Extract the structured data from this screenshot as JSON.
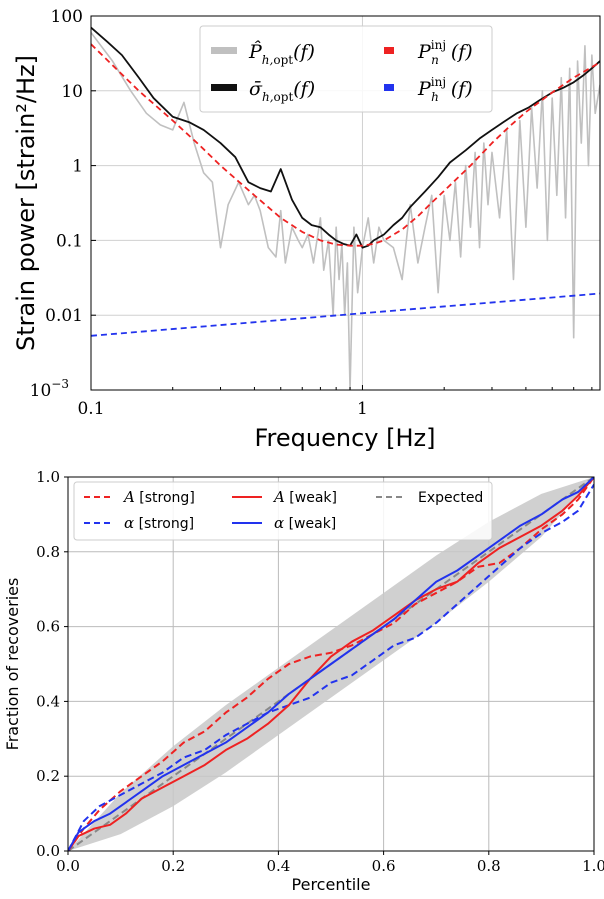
{
  "chart_data": [
    {
      "type": "line",
      "xscale": "log",
      "yscale": "log",
      "xlabel": "Frequency [Hz]",
      "ylabel": "Strain power [strain²/Hz]",
      "xlim": [
        0.1,
        7.5
      ],
      "ylim": [
        0.001,
        100
      ],
      "x_ticks": [
        {
          "value": 0.1,
          "label": "0.1"
        },
        {
          "value": 1,
          "label": "1"
        }
      ],
      "y_ticks": [
        {
          "value": 0.001,
          "label": "10",
          "exp": "−3"
        },
        {
          "value": 0.01,
          "label": "0.01"
        },
        {
          "value": 0.1,
          "label": "0.1"
        },
        {
          "value": 1,
          "label": "1"
        },
        {
          "value": 10,
          "label": "10"
        },
        {
          "value": 100,
          "label": "100"
        }
      ],
      "grid": true,
      "legend_position": "top-center",
      "series": [
        {
          "name": "P̂_{h,opt}(f)",
          "color": "#c0c0c0",
          "style": "solid",
          "x": [
            0.1,
            0.12,
            0.14,
            0.16,
            0.18,
            0.2,
            0.22,
            0.24,
            0.26,
            0.28,
            0.3,
            0.32,
            0.35,
            0.38,
            0.4,
            0.42,
            0.45,
            0.48,
            0.5,
            0.52,
            0.55,
            0.58,
            0.6,
            0.63,
            0.66,
            0.7,
            0.72,
            0.75,
            0.78,
            0.8,
            0.82,
            0.84,
            0.86,
            0.88,
            0.9,
            0.93,
            0.96,
            1.0,
            1.05,
            1.1,
            1.15,
            1.2,
            1.3,
            1.4,
            1.5,
            1.6,
            1.7,
            1.8,
            1.9,
            2.0,
            2.1,
            2.2,
            2.3,
            2.4,
            2.5,
            2.6,
            2.7,
            2.8,
            2.9,
            3.0,
            3.2,
            3.4,
            3.6,
            3.8,
            4.0,
            4.2,
            4.4,
            4.6,
            4.8,
            5.0,
            5.2,
            5.4,
            5.6,
            5.8,
            6.0,
            6.2,
            6.4,
            6.6,
            6.8,
            7.0,
            7.2,
            7.5
          ],
          "values": [
            60,
            25,
            10,
            5,
            3.5,
            3,
            7,
            2,
            0.8,
            0.6,
            0.08,
            0.3,
            0.6,
            0.3,
            0.4,
            0.25,
            0.08,
            0.06,
            0.25,
            0.05,
            0.15,
            0.1,
            0.08,
            0.12,
            0.05,
            0.2,
            0.04,
            0.1,
            0.01,
            0.15,
            0.03,
            0.09,
            0.01,
            0.05,
            0.001,
            0.15,
            0.02,
            0.08,
            0.2,
            0.05,
            0.15,
            0.1,
            0.08,
            0.03,
            0.3,
            0.05,
            0.15,
            0.4,
            0.02,
            0.4,
            0.1,
            0.6,
            0.06,
            1.0,
            0.15,
            1.5,
            0.08,
            2.0,
            0.3,
            1.5,
            0.2,
            3.0,
            0.03,
            4.0,
            0.15,
            6.0,
            0.5,
            10,
            0.1,
            8,
            0.4,
            15,
            0.2,
            20,
            0.005,
            25,
            2,
            40,
            1,
            30,
            5,
            12
          ]
        },
        {
          "name": "σ̄_{h,opt}(f)",
          "color": "#111111",
          "style": "solid",
          "x": [
            0.1,
            0.115,
            0.13,
            0.15,
            0.17,
            0.2,
            0.23,
            0.26,
            0.3,
            0.34,
            0.38,
            0.42,
            0.46,
            0.5,
            0.55,
            0.6,
            0.65,
            0.7,
            0.75,
            0.8,
            0.85,
            0.9,
            0.95,
            1.0,
            1.05,
            1.1,
            1.2,
            1.3,
            1.4,
            1.5,
            1.7,
            1.9,
            2.1,
            2.4,
            2.7,
            3.0,
            3.3,
            3.7,
            4.1,
            4.5,
            5.0,
            5.5,
            6.0,
            6.5,
            7.0,
            7.5
          ],
          "values": [
            70,
            45,
            30,
            15,
            8,
            4.5,
            3.8,
            3.0,
            2.0,
            1.3,
            0.6,
            0.5,
            0.45,
            0.9,
            0.35,
            0.2,
            0.16,
            0.15,
            0.12,
            0.1,
            0.09,
            0.085,
            0.12,
            0.08,
            0.085,
            0.1,
            0.12,
            0.16,
            0.2,
            0.28,
            0.45,
            0.7,
            1.1,
            1.6,
            2.3,
            3.0,
            3.8,
            5.0,
            6.0,
            7.5,
            9.5,
            11,
            13,
            16,
            20,
            25
          ]
        },
        {
          "name": "P_n^inj(f)",
          "color": "#ee2222",
          "style": "dashed",
          "x": [
            0.1,
            0.12,
            0.15,
            0.2,
            0.25,
            0.3,
            0.4,
            0.5,
            0.6,
            0.7,
            0.8,
            0.9,
            1.0,
            1.1,
            1.2,
            1.4,
            1.6,
            1.8,
            2.0,
            2.5,
            3.0,
            3.5,
            4.0,
            5.0,
            6.0,
            7.5
          ],
          "values": [
            42,
            22,
            10,
            4.0,
            1.9,
            1.0,
            0.4,
            0.2,
            0.13,
            0.1,
            0.088,
            0.085,
            0.085,
            0.09,
            0.1,
            0.14,
            0.21,
            0.32,
            0.46,
            1.0,
            2.0,
            3.4,
            5.2,
            9.5,
            15,
            24
          ]
        },
        {
          "name": "P_h^inj(f)",
          "color": "#2233ee",
          "style": "dashed",
          "x": [
            0.1,
            7.5
          ],
          "values": [
            0.0053,
            0.0195
          ]
        }
      ]
    },
    {
      "type": "line",
      "xlabel": "Percentile",
      "ylabel": "Fraction of recoveries",
      "xlim": [
        0,
        1
      ],
      "ylim": [
        0,
        1
      ],
      "x_ticks": [
        "0.0",
        "0.2",
        "0.4",
        "0.6",
        "0.8",
        "1.0"
      ],
      "y_ticks": [
        "0.0",
        "0.2",
        "0.4",
        "0.6",
        "0.8",
        "1.0"
      ],
      "grid": true,
      "legend_position": "top-left",
      "band": {
        "color": "#c8c8c8",
        "x": [
          0,
          0.1,
          0.2,
          0.3,
          0.4,
          0.5,
          0.6,
          0.7,
          0.8,
          0.9,
          1.0
        ],
        "lower": [
          0,
          0.045,
          0.12,
          0.21,
          0.31,
          0.41,
          0.51,
          0.61,
          0.72,
          0.84,
          1.0
        ],
        "upper": [
          0,
          0.155,
          0.28,
          0.39,
          0.49,
          0.59,
          0.69,
          0.79,
          0.88,
          0.955,
          1.0
        ]
      },
      "series": [
        {
          "name": "A [strong]",
          "color": "#ee2222",
          "style": "dashed",
          "x": [
            0,
            0.03,
            0.06,
            0.1,
            0.14,
            0.18,
            0.22,
            0.26,
            0.3,
            0.34,
            0.38,
            0.42,
            0.46,
            0.5,
            0.54,
            0.58,
            0.62,
            0.66,
            0.7,
            0.74,
            0.78,
            0.82,
            0.86,
            0.9,
            0.94,
            0.97,
            1.0
          ],
          "values": [
            0.0,
            0.06,
            0.11,
            0.16,
            0.2,
            0.24,
            0.29,
            0.32,
            0.37,
            0.41,
            0.46,
            0.5,
            0.52,
            0.53,
            0.55,
            0.58,
            0.61,
            0.66,
            0.69,
            0.72,
            0.76,
            0.77,
            0.81,
            0.86,
            0.9,
            0.94,
            1.0
          ]
        },
        {
          "name": "α [strong]",
          "color": "#2233ee",
          "style": "dashed",
          "x": [
            0,
            0.03,
            0.06,
            0.1,
            0.14,
            0.18,
            0.22,
            0.26,
            0.3,
            0.34,
            0.38,
            0.42,
            0.46,
            0.5,
            0.54,
            0.58,
            0.62,
            0.66,
            0.7,
            0.74,
            0.78,
            0.82,
            0.86,
            0.9,
            0.94,
            0.97,
            1.0
          ],
          "values": [
            0.0,
            0.08,
            0.12,
            0.15,
            0.18,
            0.21,
            0.25,
            0.27,
            0.31,
            0.34,
            0.37,
            0.39,
            0.41,
            0.45,
            0.47,
            0.51,
            0.55,
            0.57,
            0.61,
            0.66,
            0.71,
            0.76,
            0.81,
            0.85,
            0.88,
            0.91,
            0.98
          ]
        },
        {
          "name": "A [weak]",
          "color": "#ee2222",
          "style": "solid",
          "x": [
            0,
            0.02,
            0.05,
            0.08,
            0.11,
            0.14,
            0.18,
            0.22,
            0.26,
            0.3,
            0.34,
            0.38,
            0.42,
            0.46,
            0.5,
            0.54,
            0.58,
            0.62,
            0.66,
            0.7,
            0.74,
            0.78,
            0.82,
            0.86,
            0.9,
            0.94,
            0.97,
            1.0
          ],
          "values": [
            0.0,
            0.04,
            0.06,
            0.07,
            0.1,
            0.14,
            0.17,
            0.2,
            0.23,
            0.27,
            0.3,
            0.34,
            0.39,
            0.46,
            0.52,
            0.56,
            0.59,
            0.63,
            0.67,
            0.7,
            0.72,
            0.77,
            0.81,
            0.84,
            0.87,
            0.91,
            0.95,
            1.0
          ]
        },
        {
          "name": "α [weak]",
          "color": "#2233ee",
          "style": "solid",
          "x": [
            0,
            0.02,
            0.05,
            0.08,
            0.11,
            0.14,
            0.18,
            0.22,
            0.26,
            0.3,
            0.34,
            0.38,
            0.42,
            0.46,
            0.5,
            0.54,
            0.58,
            0.62,
            0.66,
            0.7,
            0.74,
            0.78,
            0.82,
            0.86,
            0.9,
            0.94,
            0.97,
            1.0
          ],
          "values": [
            0.0,
            0.05,
            0.08,
            0.1,
            0.13,
            0.16,
            0.2,
            0.23,
            0.26,
            0.29,
            0.33,
            0.37,
            0.42,
            0.46,
            0.5,
            0.54,
            0.58,
            0.62,
            0.67,
            0.72,
            0.75,
            0.79,
            0.83,
            0.87,
            0.9,
            0.94,
            0.96,
            1.0
          ]
        },
        {
          "name": "Expected",
          "color": "#888888",
          "style": "dashed",
          "x": [
            0,
            1
          ],
          "values": [
            0,
            1
          ]
        }
      ]
    }
  ]
}
